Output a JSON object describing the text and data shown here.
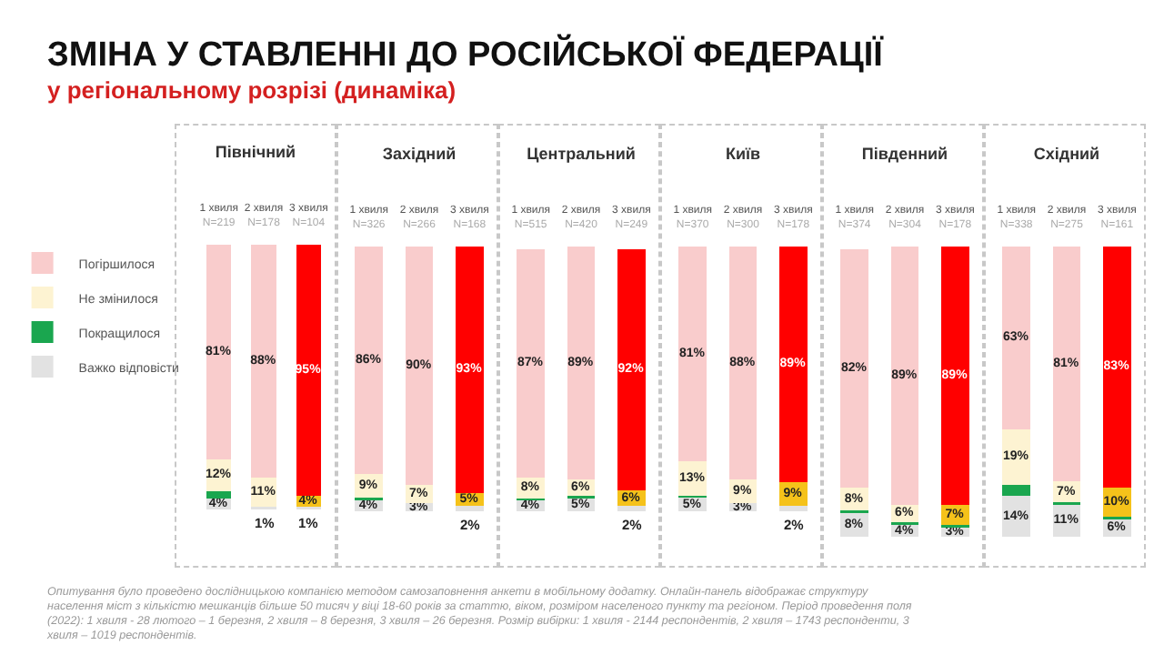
{
  "chart_data": [
    {
      "type": "bar",
      "stacked": true,
      "title": "Північний",
      "legend": "left",
      "categories": [
        "1 хвиля\nN=219",
        "2 хвиля\nN=178",
        "3 хвиля\nN=104"
      ],
      "series": [
        {
          "name": "Важко відповісти",
          "colors": [
            "#e2e2e2",
            "#e2e2e2",
            "#e2e2e2"
          ],
          "values": [
            4,
            1,
            1
          ],
          "value_labels": [
            "4%",
            "1%",
            "1%"
          ]
        },
        {
          "name": "Покращилося",
          "colors": [
            "#1aa64f",
            "#1aa64f",
            "#1aa64f"
          ],
          "values": [
            3,
            0,
            0
          ],
          "value_labels": [
            null,
            null,
            null
          ]
        },
        {
          "name": "Не змінилося",
          "colors": [
            "#fdf3d2",
            "#fdf3d2",
            "#f5c21a"
          ],
          "values": [
            12,
            11,
            4
          ],
          "value_labels": [
            "12%",
            "11%",
            "4%"
          ]
        },
        {
          "name": "Погіршилося",
          "colors": [
            "#f9cccc",
            "#f9cccc",
            "#ff0000"
          ],
          "values": [
            81,
            88,
            95
          ],
          "value_labels": [
            "81%",
            "88%",
            "95%"
          ]
        }
      ],
      "annotations": [
        "ЗМІНА У СТАВЛЕННІ ДО РОСІЙСЬКОЇ ФЕДЕРАЦІЇ",
        "у регіональному розрізі (динаміка)"
      ]
    },
    {
      "type": "bar",
      "stacked": true,
      "title": "Західний",
      "categories": [
        "1 хвиля\nN=326",
        "2 хвиля\nN=266",
        "3 хвиля\nN=168"
      ],
      "series": [
        {
          "colors": [
            "#e2e2e2",
            "#e2e2e2",
            "#e2e2e2"
          ],
          "values": [
            4,
            3,
            2
          ],
          "value_labels": [
            "4%",
            "3%",
            "2%"
          ]
        },
        {
          "colors": [
            "#1aa64f",
            "#1aa64f",
            "#1aa64f"
          ],
          "values": [
            1,
            0,
            0
          ],
          "value_labels": [
            null,
            null,
            null
          ]
        },
        {
          "colors": [
            "#fdf3d2",
            "#fdf3d2",
            "#f5c21a"
          ],
          "values": [
            9,
            7,
            5
          ],
          "value_labels": [
            "9%",
            "7%",
            "5%"
          ]
        },
        {
          "colors": [
            "#f9cccc",
            "#f9cccc",
            "#ff0000"
          ],
          "values": [
            86,
            90,
            93
          ],
          "value_labels": [
            "86%",
            "90%",
            "93%"
          ]
        }
      ]
    },
    {
      "type": "bar",
      "stacked": true,
      "title": "Центральний",
      "categories": [
        "1 хвиля\nN=515",
        "2 хвиля\nN=420",
        "3 хвиля\nN=249"
      ],
      "series": [
        {
          "colors": [
            "#e2e2e2",
            "#e2e2e2",
            "#e2e2e2"
          ],
          "values": [
            4,
            5,
            2
          ],
          "value_labels": [
            "4%",
            "5%",
            "2%"
          ]
        },
        {
          "colors": [
            "#1aa64f",
            "#1aa64f",
            "#1aa64f"
          ],
          "values": [
            1,
            1,
            0
          ],
          "value_labels": [
            null,
            null,
            null
          ]
        },
        {
          "colors": [
            "#fdf3d2",
            "#fdf3d2",
            "#f5c21a"
          ],
          "values": [
            8,
            6,
            6
          ],
          "value_labels": [
            "8%",
            "6%",
            "6%"
          ]
        },
        {
          "colors": [
            "#f9cccc",
            "#f9cccc",
            "#ff0000"
          ],
          "values": [
            87,
            89,
            92
          ],
          "value_labels": [
            "87%",
            "89%",
            "92%"
          ]
        }
      ]
    },
    {
      "type": "bar",
      "stacked": true,
      "title": "Київ",
      "categories": [
        "1 хвиля\nN=370",
        "2 хвиля\nN=300",
        "3 хвиля\nN=178"
      ],
      "series": [
        {
          "colors": [
            "#e2e2e2",
            "#e2e2e2",
            "#e2e2e2"
          ],
          "values": [
            5,
            3,
            2
          ],
          "value_labels": [
            "5%",
            "3%",
            "2%"
          ]
        },
        {
          "colors": [
            "#1aa64f",
            "#1aa64f",
            "#1aa64f"
          ],
          "values": [
            1,
            0,
            0
          ],
          "value_labels": [
            null,
            null,
            null
          ]
        },
        {
          "colors": [
            "#fdf3d2",
            "#fdf3d2",
            "#f5c21a"
          ],
          "values": [
            13,
            9,
            9
          ],
          "value_labels": [
            "13%",
            "9%",
            "9%"
          ]
        },
        {
          "colors": [
            "#f9cccc",
            "#f9cccc",
            "#ff0000"
          ],
          "values": [
            81,
            88,
            89
          ],
          "value_labels": [
            "81%",
            "88%",
            "89%"
          ]
        }
      ]
    },
    {
      "type": "bar",
      "stacked": true,
      "title": "Південний",
      "categories": [
        "1 хвиля\nN=374",
        "2 хвиля\nN=304",
        "3 хвиля\nN=178"
      ],
      "series": [
        {
          "colors": [
            "#e2e2e2",
            "#e2e2e2",
            "#e2e2e2"
          ],
          "values": [
            8,
            4,
            3
          ],
          "value_labels": [
            "8%",
            "4%",
            "3%"
          ]
        },
        {
          "colors": [
            "#1aa64f",
            "#1aa64f",
            "#1aa64f"
          ],
          "values": [
            1,
            1,
            1
          ],
          "value_labels": [
            null,
            null,
            null
          ]
        },
        {
          "colors": [
            "#fdf3d2",
            "#fdf3d2",
            "#f5c21a"
          ],
          "values": [
            8,
            6,
            7
          ],
          "value_labels": [
            "8%",
            "6%",
            "7%"
          ]
        },
        {
          "colors": [
            "#f9cccc",
            "#f9cccc",
            "#ff0000"
          ],
          "values": [
            82,
            89,
            89
          ],
          "value_labels": [
            "82%",
            "89%",
            "89%"
          ]
        }
      ]
    },
    {
      "type": "bar",
      "stacked": true,
      "title": "Східний",
      "categories": [
        "1 хвиля\nN=338",
        "2 хвиля\nN=275",
        "3 хвиля\nN=161"
      ],
      "series": [
        {
          "colors": [
            "#e2e2e2",
            "#e2e2e2",
            "#e2e2e2"
          ],
          "values": [
            14,
            11,
            6
          ],
          "value_labels": [
            "14%",
            "11%",
            "6%"
          ]
        },
        {
          "colors": [
            "#1aa64f",
            "#1aa64f",
            "#1aa64f"
          ],
          "values": [
            4,
            1,
            1
          ],
          "value_labels": [
            null,
            null,
            null
          ]
        },
        {
          "colors": [
            "#fdf3d2",
            "#fdf3d2",
            "#f5c21a"
          ],
          "values": [
            19,
            7,
            10
          ],
          "value_labels": [
            "19%",
            "7%",
            "10%"
          ]
        },
        {
          "colors": [
            "#f9cccc",
            "#f9cccc",
            "#ff0000"
          ],
          "values": [
            63,
            81,
            83
          ],
          "value_labels": [
            "63%",
            "81%",
            "83%"
          ]
        }
      ],
      "annotations": [
        "Опитування було проведено дослідницькою компанією методом самозаповнення анкети в мобільному додатку. Онлайн-панель відображає структуру населення міст з кількістю мешканців більше 50 тисяч у віці 18-60 років за статтю, віком, розміром населеного пункту та регіоном. Період проведення поля (2022): 1 хвиля - 28 лютого – 1 березня, 2 хвиля – 8 березня, 3 хвиля – 26 березня. Розмір вибірки: 1 хвиля - 2144 респондентів, 2 хвиля – 1743 респонденти, 3 хвиля – 1019 респондентів."
      ]
    }
  ]
}
